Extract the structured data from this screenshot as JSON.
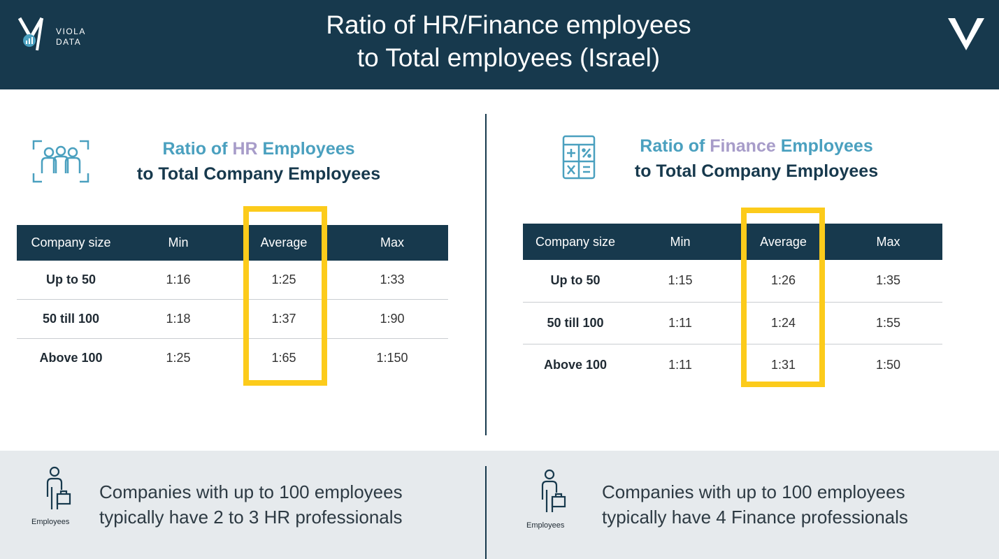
{
  "header": {
    "title": "Ratio of HR/Finance employees\nto Total employees (Israel)",
    "logo_text": "VIOLA\nDATA"
  },
  "colors": {
    "navy": "#17394d",
    "accent_blue": "#4aa0bf",
    "accent_purple": "#a79cc9",
    "highlight_yellow": "#fccb1b",
    "footer_bg": "#e6eaed"
  },
  "hr_panel": {
    "icon": "people-group-icon",
    "title_part1": "Ratio of ",
    "title_highlight": "HR",
    "title_part2": " Employees",
    "title_line2": "to Total Company Employees",
    "table": {
      "headers": [
        "Company size",
        "Min",
        "Average",
        "Max"
      ],
      "rows": [
        [
          "Up to 50",
          "1:16",
          "1:25",
          "1:33"
        ],
        [
          "50 till 100",
          "1:18",
          "1:37",
          "1:90"
        ],
        [
          "Above 100",
          "1:25",
          "1:65",
          "1:150"
        ]
      ]
    }
  },
  "finance_panel": {
    "icon": "calculator-icon",
    "title_part1": "Ratio of ",
    "title_highlight": "Finance",
    "title_part2": " Employees",
    "title_line2": "to Total Company Employees",
    "table": {
      "headers": [
        "Company size",
        "Min",
        "Average",
        "Max"
      ],
      "rows": [
        [
          "Up to 50",
          "1:15",
          "1:26",
          "1:35"
        ],
        [
          "50 till 100",
          "1:11",
          "1:24",
          "1:55"
        ],
        [
          "Above 100",
          "1:11",
          "1:31",
          "1:50"
        ]
      ]
    }
  },
  "footer": {
    "left": {
      "icon": "employee-briefcase-icon",
      "icon_label": "Employees",
      "text": "Companies with up to 100 employees\ntypically have 2 to 3 HR professionals"
    },
    "right": {
      "icon": "employee-briefcase-icon",
      "icon_label": "Employees",
      "text": "Companies with up to 100 employees\ntypically have 4 Finance professionals"
    }
  }
}
